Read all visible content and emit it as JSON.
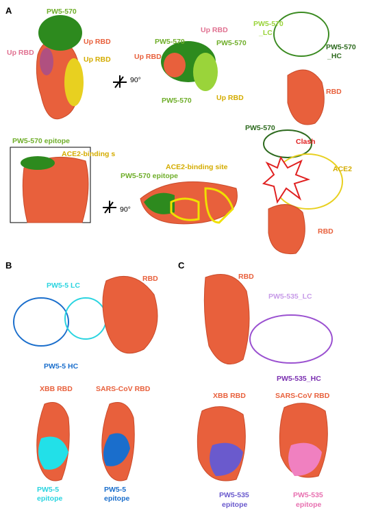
{
  "panel_a": {
    "letter": "A",
    "labels": [
      "PW5-570",
      "Up RBD",
      "Up RBD",
      "Up RBD",
      "90°",
      "PW5-570",
      "Up RBD",
      "PW5-570",
      "Up RBD",
      "PW5-570",
      "Up RBD",
      "PW5-570",
      "_LC",
      "PW5-570",
      "_HC",
      "RBD",
      "PW5-570 epitope",
      "ACE2-binding s",
      "ACE2-binding site",
      "PW5-570 epitope",
      "90°",
      "PW5-570",
      "Clash",
      "ACE2",
      "RBD"
    ]
  },
  "panel_b": {
    "letter": "B",
    "labels": [
      "PW5-5 LC",
      "RBD",
      "PW5-5 HC",
      "XBB RBD",
      "SARS-CoV RBD",
      "PW5-5",
      "epitope",
      "PW5-5",
      "epitope"
    ]
  },
  "panel_c": {
    "letter": "C",
    "labels": [
      "RBD",
      "PW5-535_LC",
      "PW5-535_HC",
      "XBB RBD",
      "SARS-CoV RBD",
      "PW5-535",
      "epitope",
      "PW5-535",
      "epitope"
    ]
  }
}
